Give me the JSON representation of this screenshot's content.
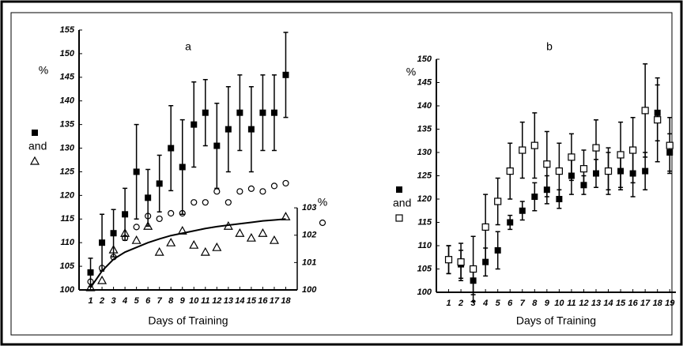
{
  "chart_data": [
    {
      "type": "scatter",
      "title": "a",
      "xlabel": "Days of Training",
      "ylabel": "%",
      "y2label": "%",
      "annotation": "and",
      "x": [
        1,
        2,
        3,
        4,
        5,
        6,
        7,
        8,
        9,
        10,
        11,
        12,
        13,
        14,
        15,
        16,
        17,
        18
      ],
      "xlim": [
        0,
        19
      ],
      "xticks": [
        1,
        2,
        3,
        4,
        5,
        6,
        7,
        8,
        9,
        10,
        11,
        12,
        13,
        14,
        15,
        16,
        17,
        18
      ],
      "ylim": [
        100,
        155
      ],
      "yticks": [
        100,
        105,
        110,
        115,
        120,
        125,
        130,
        135,
        140,
        145,
        150,
        155
      ],
      "y2lim": [
        100,
        109.5
      ],
      "y2ticks": [
        100,
        101,
        102,
        103
      ],
      "series": [
        {
          "marker": "filled-square",
          "color": "#000000",
          "values": [
            103.7,
            110,
            112,
            116,
            125,
            119.5,
            122.5,
            130,
            126,
            135,
            137.5,
            130.5,
            134,
            137.5,
            134,
            137.5,
            137.5,
            145.5
          ],
          "errors": [
            3,
            6,
            5,
            5.5,
            10,
            6,
            6,
            9,
            10,
            9,
            7,
            9,
            9,
            8,
            9,
            8,
            8,
            9
          ]
        },
        {
          "marker": "open-triangle",
          "color": "#000000",
          "values": [
            100.5,
            102,
            108.5,
            112,
            110.5,
            113.5,
            108,
            110,
            112.5,
            109.5,
            108,
            109,
            113.5,
            112,
            111,
            112,
            110.5,
            115.5
          ]
        },
        {
          "marker": "open-circle",
          "color": "#000000",
          "axis": "y2",
          "values": [
            100.3,
            100.8,
            101.2,
            101.9,
            102.3,
            102.7,
            102.6,
            102.8,
            102.8,
            103.2,
            103.2,
            103.6,
            103.2,
            103.6,
            103.7,
            103.6,
            103.8,
            103.9
          ]
        },
        {
          "marker": "line",
          "color": "#000000",
          "values": [
            100.5,
            104,
            106.5,
            108,
            109,
            110,
            110.8,
            111.5,
            112,
            112.5,
            113,
            113.4,
            113.7,
            114,
            114.3,
            114.6,
            114.8,
            115
          ]
        }
      ]
    },
    {
      "type": "scatter",
      "title": "b",
      "xlabel": "Days of Training",
      "ylabel": "%",
      "annotation": "and",
      "x": [
        1,
        2,
        3,
        4,
        5,
        6,
        7,
        8,
        9,
        10,
        11,
        12,
        13,
        14,
        15,
        16,
        17,
        18,
        19
      ],
      "xlim": [
        0,
        19.5
      ],
      "xticks": [
        1,
        2,
        3,
        4,
        5,
        6,
        7,
        8,
        9,
        10,
        11,
        12,
        13,
        14,
        15,
        16,
        17,
        18,
        19
      ],
      "ylim": [
        100,
        150
      ],
      "yticks": [
        100,
        105,
        110,
        115,
        120,
        125,
        130,
        135,
        140,
        145,
        150
      ],
      "series": [
        {
          "marker": "filled-square",
          "color": "#000000",
          "values": [
            107,
            106,
            102.5,
            106.5,
            109,
            115,
            117.5,
            120.5,
            122,
            120,
            125,
            123,
            125.5,
            126,
            126,
            125.5,
            126,
            138.5,
            130
          ],
          "errors": [
            3,
            3,
            3,
            3,
            4,
            1.5,
            2,
            3,
            3,
            2,
            4,
            2,
            3,
            4,
            4,
            5,
            4,
            6,
            4
          ]
        },
        {
          "marker": "open-square",
          "color": "#000000",
          "values": [
            107,
            106.5,
            105,
            114,
            119.5,
            126,
            130.5,
            131.5,
            127.5,
            126,
            129,
            126.5,
            131,
            126,
            129.5,
            130.5,
            139,
            137,
            131.5
          ],
          "errors": [
            3,
            4,
            7,
            7,
            5,
            6,
            6,
            7,
            7,
            6,
            5,
            4,
            6,
            5,
            7,
            7,
            10,
            9,
            6
          ]
        }
      ]
    }
  ]
}
